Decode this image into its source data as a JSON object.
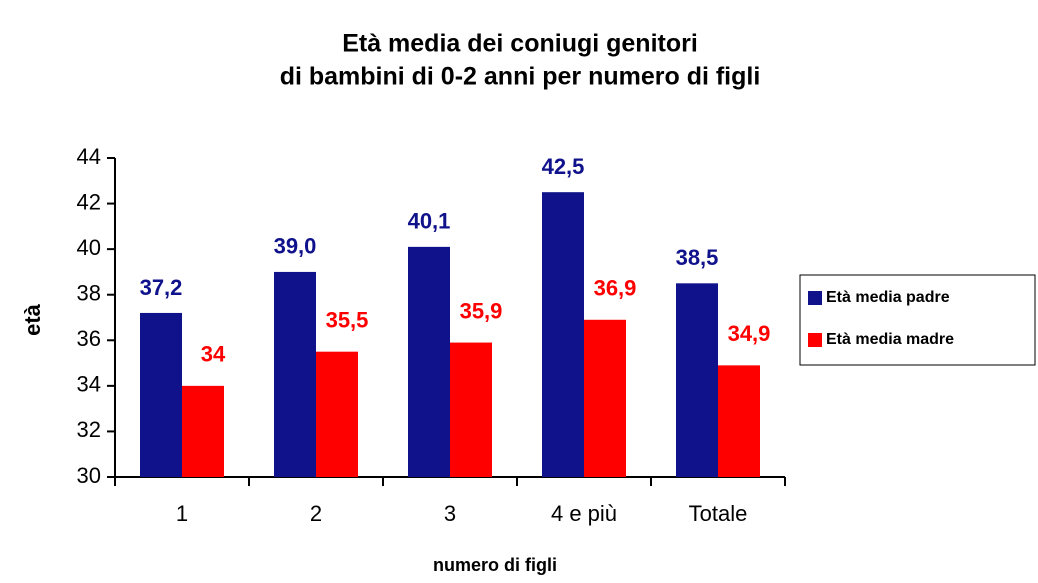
{
  "chart_data": {
    "type": "bar",
    "title": [
      "Età media dei coniugi genitori",
      "di bambini di 0-2 anni per numero di figli"
    ],
    "x_label": "numero di figli",
    "y_label": "età",
    "categories": [
      "1",
      "2",
      "3",
      "4 e più",
      "Totale"
    ],
    "series": [
      {
        "name": "Età media padre",
        "color": "#10128c",
        "values": [
          37.2,
          39.0,
          40.1,
          42.5,
          38.5
        ],
        "value_labels": [
          "37,2",
          "39,0",
          "40,1",
          "42,5",
          "38,5"
        ]
      },
      {
        "name": "Età media madre",
        "color": "#ff0000",
        "values": [
          34,
          35.5,
          35.9,
          36.9,
          34.9
        ],
        "value_labels": [
          "34",
          "35,5",
          "35,9",
          "36,9",
          "34,9"
        ]
      }
    ],
    "ylim": [
      30,
      44
    ],
    "yticks": [
      30,
      32,
      34,
      36,
      38,
      40,
      42,
      44
    ],
    "legend": "right"
  }
}
